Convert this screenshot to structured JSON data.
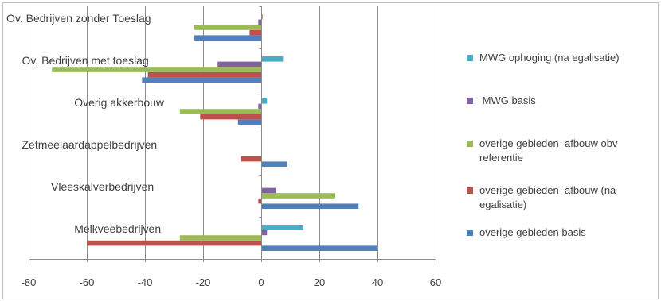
{
  "chart_data": {
    "type": "bar",
    "orientation": "horizontal",
    "categories": [
      "Melkveebedrijven",
      "Vleeskalverbedrijven",
      "Zetmeelaardappelbedrijven",
      "Overig akkerbouw",
      "Ov. Bedrijven met toeslag",
      "Ov. Bedrijven zonder Toeslag"
    ],
    "series": [
      {
        "name": "overige gebieden basis",
        "color": "#4f81bd",
        "values": [
          40,
          33.5,
          9,
          -8,
          -41,
          -23
        ]
      },
      {
        "name": "overige gebieden  afbouw (na egalisatie)",
        "color": "#c0504d",
        "values": [
          -60,
          -1,
          -7,
          -21,
          -39,
          -4
        ]
      },
      {
        "name": "overige gebieden  afbouw obv referentie",
        "color": "#9bbb59",
        "values": [
          -28,
          25.5,
          0,
          -28,
          -72,
          -23
        ]
      },
      {
        "name": " MWG basis",
        "color": "#8064a2",
        "values": [
          2,
          5,
          0,
          -1,
          -15,
          -1
        ]
      },
      {
        "name": "MWG ophoging (na egalisatie)",
        "color": "#4bacc6",
        "values": [
          14.5,
          0,
          0.2,
          2,
          7.5,
          0.5
        ]
      }
    ],
    "xlim": [
      -80,
      60
    ],
    "xticks": [
      "-80",
      "-60",
      "-40",
      "-20",
      "0",
      "20",
      "40",
      "60"
    ],
    "grid": true,
    "legend_position": "right",
    "legend_order": [
      4,
      3,
      2,
      1,
      0
    ]
  }
}
